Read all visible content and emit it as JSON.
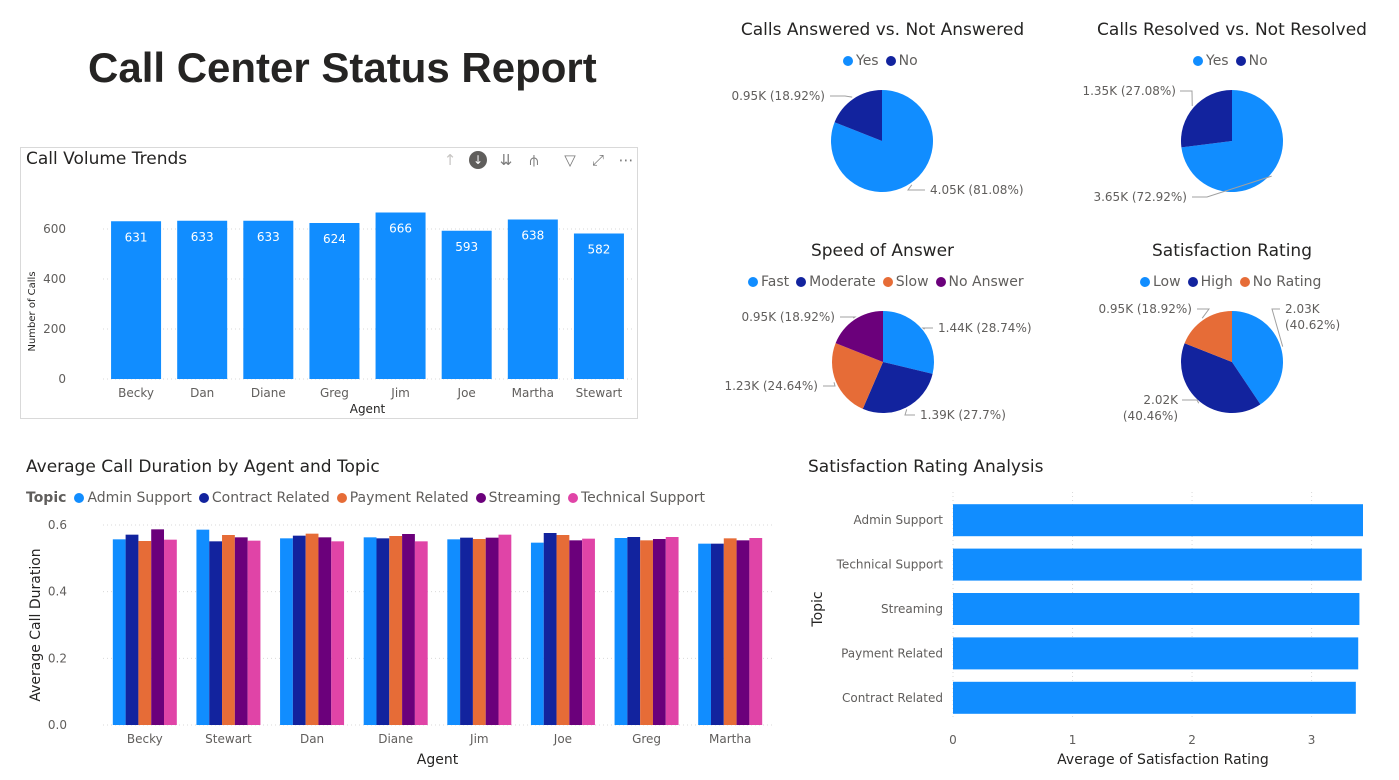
{
  "report": {
    "title": "Call Center Status Report"
  },
  "toolbar": {
    "up": "↑",
    "drill": "↓",
    "expand": "⇊",
    "hier": "⫛",
    "filter": "▽",
    "focus": "⤢",
    "more": "⋯"
  },
  "colors": {
    "blue": "#118dff",
    "navy": "#12239e",
    "orange": "#e66c37",
    "purple": "#6b007b",
    "pink": "#e044a7",
    "grid": "#d9d9d9",
    "axis": "#605e5c"
  },
  "chart_data": [
    {
      "id": "volume",
      "type": "bar",
      "title": "Call Volume Trends",
      "xlabel": "Agent",
      "ylabel": "Number of Calls",
      "categories": [
        "Becky",
        "Dan",
        "Diane",
        "Greg",
        "Jim",
        "Joe",
        "Martha",
        "Stewart"
      ],
      "values": [
        631,
        633,
        633,
        624,
        666,
        593,
        638,
        582
      ],
      "ylim": [
        0,
        700
      ],
      "yticks": [
        "0",
        "200",
        "400",
        "600"
      ],
      "color": "#118dff"
    },
    {
      "id": "answered",
      "type": "pie",
      "title": "Calls Answered vs. Not Answered",
      "slices": [
        {
          "name": "Yes",
          "value": 4.05,
          "label": "4.05K (81.08%)",
          "color": "#118dff"
        },
        {
          "name": "No",
          "value": 0.95,
          "label": "0.95K (18.92%)",
          "color": "#12239e"
        }
      ]
    },
    {
      "id": "resolved",
      "type": "pie",
      "title": "Calls Resolved vs. Not Resolved",
      "slices": [
        {
          "name": "Yes",
          "value": 3.65,
          "label": "3.65K (72.92%)",
          "color": "#118dff"
        },
        {
          "name": "No",
          "value": 1.35,
          "label": "1.35K (27.08%)",
          "color": "#12239e"
        }
      ]
    },
    {
      "id": "speed",
      "type": "pie",
      "title": "Speed of Answer",
      "slices": [
        {
          "name": "Fast",
          "value": 1.44,
          "label": "1.44K (28.74%)",
          "color": "#118dff"
        },
        {
          "name": "Moderate",
          "value": 1.39,
          "label": "1.39K (27.7%)",
          "color": "#12239e"
        },
        {
          "name": "Slow",
          "value": 1.23,
          "label": "1.23K (24.64%)",
          "color": "#e66c37"
        },
        {
          "name": "No Answer",
          "value": 0.95,
          "label": "0.95K (18.92%)",
          "color": "#6b007b"
        }
      ]
    },
    {
      "id": "satisfaction",
      "type": "pie",
      "title": "Satisfaction Rating",
      "slices": [
        {
          "name": "Low",
          "value": 2.03,
          "label": "2.03K",
          "label2": "(40.62%)",
          "color": "#118dff"
        },
        {
          "name": "High",
          "value": 2.02,
          "label": "2.02K",
          "label2": "(40.46%)",
          "color": "#12239e"
        },
        {
          "name": "No Rating",
          "value": 0.95,
          "label": "0.95K (18.92%)",
          "color": "#e66c37"
        }
      ]
    },
    {
      "id": "duration",
      "type": "bar",
      "title": "Average Call Duration by Agent and Topic",
      "legend_title": "Topic",
      "xlabel": "Agent",
      "ylabel": "Average Call Duration",
      "categories": [
        "Becky",
        "Stewart",
        "Dan",
        "Diane",
        "Jim",
        "Joe",
        "Greg",
        "Martha"
      ],
      "ylim": [
        0,
        0.6
      ],
      "yticks": [
        "0.0",
        "0.2",
        "0.4",
        "0.6"
      ],
      "series": [
        {
          "name": "Admin Support",
          "color": "#118dff",
          "values": [
            0.557,
            0.586,
            0.56,
            0.563,
            0.557,
            0.547,
            0.561,
            0.544
          ]
        },
        {
          "name": "Contract Related",
          "color": "#12239e",
          "values": [
            0.571,
            0.551,
            0.568,
            0.56,
            0.562,
            0.576,
            0.564,
            0.544
          ]
        },
        {
          "name": "Payment Related",
          "color": "#e66c37",
          "values": [
            0.552,
            0.57,
            0.574,
            0.567,
            0.558,
            0.57,
            0.554,
            0.56
          ]
        },
        {
          "name": "Streaming",
          "color": "#6b007b",
          "values": [
            0.587,
            0.563,
            0.563,
            0.573,
            0.562,
            0.554,
            0.558,
            0.554
          ]
        },
        {
          "name": "Technical Support",
          "color": "#e044a7",
          "values": [
            0.556,
            0.553,
            0.551,
            0.551,
            0.571,
            0.559,
            0.564,
            0.561
          ]
        }
      ]
    },
    {
      "id": "satanalysis",
      "type": "bar",
      "orientation": "horizontal",
      "title": "Satisfaction Rating Analysis",
      "xlabel": "Average of Satisfaction Rating",
      "ylabel": "Topic",
      "categories": [
        "Admin Support",
        "Technical Support",
        "Streaming",
        "Payment Related",
        "Contract Related"
      ],
      "values": [
        3.43,
        3.42,
        3.4,
        3.39,
        3.37
      ],
      "xlim": [
        0,
        3.43
      ],
      "xticks": [
        "0",
        "1",
        "2",
        "3"
      ],
      "color": "#118dff"
    }
  ]
}
